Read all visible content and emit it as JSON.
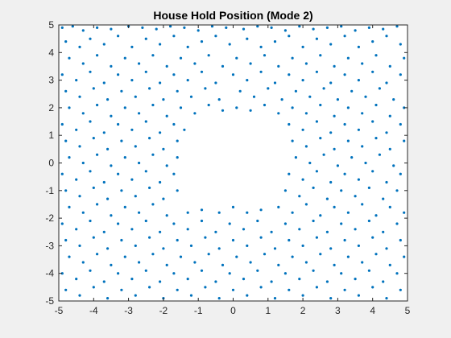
{
  "chart_data": {
    "type": "scatter",
    "title": "House Hold Position (Mode 2)",
    "xlabel": "",
    "ylabel": "",
    "xlim": [
      -5,
      5
    ],
    "ylim": [
      -5,
      5
    ],
    "xticks": [
      "-5",
      "-4",
      "-3",
      "-2",
      "-1",
      "0",
      "1",
      "2",
      "3",
      "4",
      "5"
    ],
    "yticks": [
      "-5",
      "-4",
      "-3",
      "-2",
      "-1",
      "0",
      "1",
      "2",
      "3",
      "4",
      "5"
    ],
    "grid": false,
    "marker_color": "#0072BD",
    "points_description_omitted": false,
    "points": [
      [
        -4.9,
        4.9
      ],
      [
        -4.6,
        4.95
      ],
      [
        -4.3,
        4.8
      ],
      [
        -3.9,
        4.9
      ],
      [
        -3.5,
        4.85
      ],
      [
        -3.0,
        4.95
      ],
      [
        -2.6,
        4.9
      ],
      [
        -2.2,
        4.85
      ],
      [
        -1.8,
        4.95
      ],
      [
        -1.4,
        4.9
      ],
      [
        -1.0,
        4.8
      ],
      [
        -0.6,
        4.95
      ],
      [
        -0.2,
        4.9
      ],
      [
        0.3,
        4.85
      ],
      [
        0.7,
        4.95
      ],
      [
        1.1,
        4.9
      ],
      [
        1.5,
        4.8
      ],
      [
        1.9,
        4.95
      ],
      [
        2.3,
        4.85
      ],
      [
        2.7,
        4.9
      ],
      [
        3.1,
        4.95
      ],
      [
        3.5,
        4.8
      ],
      [
        3.9,
        4.9
      ],
      [
        4.3,
        4.85
      ],
      [
        4.7,
        4.95
      ],
      [
        -4.8,
        4.4
      ],
      [
        -4.4,
        4.2
      ],
      [
        -4.1,
        4.5
      ],
      [
        -3.7,
        4.3
      ],
      [
        -3.3,
        4.6
      ],
      [
        -2.9,
        4.2
      ],
      [
        -2.5,
        4.5
      ],
      [
        -2.1,
        4.3
      ],
      [
        -1.7,
        4.6
      ],
      [
        -1.3,
        4.2
      ],
      [
        -0.9,
        4.4
      ],
      [
        -0.5,
        4.6
      ],
      [
        -0.1,
        4.3
      ],
      [
        0.4,
        4.5
      ],
      [
        0.8,
        4.2
      ],
      [
        1.2,
        4.4
      ],
      [
        1.6,
        4.6
      ],
      [
        2.0,
        4.2
      ],
      [
        2.4,
        4.5
      ],
      [
        2.8,
        4.3
      ],
      [
        3.2,
        4.6
      ],
      [
        3.6,
        4.2
      ],
      [
        4.0,
        4.4
      ],
      [
        4.4,
        4.6
      ],
      [
        4.8,
        4.3
      ],
      [
        -4.7,
        3.8
      ],
      [
        -4.3,
        3.6
      ],
      [
        -3.9,
        3.9
      ],
      [
        -3.5,
        3.5
      ],
      [
        -3.1,
        3.8
      ],
      [
        -2.7,
        3.6
      ],
      [
        -2.3,
        3.9
      ],
      [
        -1.9,
        3.5
      ],
      [
        -1.5,
        3.8
      ],
      [
        -1.1,
        3.6
      ],
      [
        -0.7,
        3.9
      ],
      [
        -0.3,
        3.5
      ],
      [
        0.1,
        3.8
      ],
      [
        0.5,
        3.6
      ],
      [
        0.9,
        3.9
      ],
      [
        1.3,
        3.5
      ],
      [
        1.7,
        3.8
      ],
      [
        2.1,
        3.6
      ],
      [
        2.5,
        3.9
      ],
      [
        2.9,
        3.5
      ],
      [
        3.3,
        3.8
      ],
      [
        3.7,
        3.6
      ],
      [
        4.1,
        3.9
      ],
      [
        4.5,
        3.5
      ],
      [
        4.9,
        3.8
      ],
      [
        -4.9,
        3.2
      ],
      [
        -4.5,
        3.0
      ],
      [
        -4.1,
        3.3
      ],
      [
        -3.7,
        2.9
      ],
      [
        -3.3,
        3.2
      ],
      [
        -2.9,
        3.0
      ],
      [
        -2.5,
        3.3
      ],
      [
        -2.1,
        2.9
      ],
      [
        -1.7,
        3.2
      ],
      [
        -1.3,
        3.0
      ],
      [
        -0.9,
        3.3
      ],
      [
        -0.5,
        2.9
      ],
      [
        0.0,
        3.2
      ],
      [
        0.4,
        3.0
      ],
      [
        0.8,
        3.3
      ],
      [
        1.2,
        2.9
      ],
      [
        1.6,
        3.2
      ],
      [
        2.0,
        3.0
      ],
      [
        2.4,
        3.3
      ],
      [
        2.8,
        2.9
      ],
      [
        3.2,
        3.2
      ],
      [
        3.6,
        3.0
      ],
      [
        4.0,
        3.3
      ],
      [
        4.4,
        2.9
      ],
      [
        4.8,
        3.2
      ],
      [
        -4.8,
        2.6
      ],
      [
        -4.4,
        2.4
      ],
      [
        -4.0,
        2.7
      ],
      [
        -3.6,
        2.3
      ],
      [
        -3.2,
        2.6
      ],
      [
        -2.8,
        2.4
      ],
      [
        -2.4,
        2.7
      ],
      [
        -2.0,
        2.3
      ],
      [
        -1.6,
        2.6
      ],
      [
        -1.2,
        2.4
      ],
      [
        -0.8,
        2.7
      ],
      [
        -0.4,
        2.3
      ],
      [
        0.2,
        2.6
      ],
      [
        0.6,
        2.4
      ],
      [
        1.0,
        2.7
      ],
      [
        1.4,
        2.3
      ],
      [
        1.8,
        2.6
      ],
      [
        2.2,
        2.4
      ],
      [
        2.6,
        2.7
      ],
      [
        3.0,
        2.3
      ],
      [
        3.4,
        2.6
      ],
      [
        3.8,
        2.4
      ],
      [
        4.2,
        2.7
      ],
      [
        4.6,
        2.3
      ],
      [
        -4.7,
        2.0
      ],
      [
        -4.3,
        1.8
      ],
      [
        -3.9,
        2.1
      ],
      [
        -3.5,
        1.7
      ],
      [
        -3.1,
        2.0
      ],
      [
        -2.7,
        1.8
      ],
      [
        -2.3,
        2.1
      ],
      [
        -1.9,
        1.7
      ],
      [
        -1.5,
        2.0
      ],
      [
        -1.1,
        1.8
      ],
      [
        -0.7,
        2.1
      ],
      [
        -0.3,
        1.9
      ],
      [
        0.1,
        2.0
      ],
      [
        0.5,
        1.9
      ],
      [
        0.9,
        2.1
      ],
      [
        1.3,
        1.8
      ],
      [
        1.7,
        2.0
      ],
      [
        2.1,
        1.8
      ],
      [
        2.5,
        2.1
      ],
      [
        2.9,
        1.7
      ],
      [
        3.3,
        2.0
      ],
      [
        3.7,
        1.8
      ],
      [
        4.1,
        2.1
      ],
      [
        4.5,
        1.7
      ],
      [
        4.9,
        2.0
      ],
      [
        -4.9,
        1.4
      ],
      [
        -4.5,
        1.2
      ],
      [
        -4.1,
        1.5
      ],
      [
        -3.7,
        1.1
      ],
      [
        -3.3,
        1.4
      ],
      [
        -2.9,
        1.2
      ],
      [
        -2.5,
        1.5
      ],
      [
        -2.1,
        1.1
      ],
      [
        -1.7,
        1.4
      ],
      [
        -1.4,
        1.2
      ],
      [
        1.6,
        1.4
      ],
      [
        2.0,
        1.2
      ],
      [
        2.4,
        1.5
      ],
      [
        2.8,
        1.1
      ],
      [
        3.2,
        1.4
      ],
      [
        3.6,
        1.2
      ],
      [
        4.0,
        1.5
      ],
      [
        4.4,
        1.1
      ],
      [
        4.8,
        1.4
      ],
      [
        -4.8,
        0.8
      ],
      [
        -4.4,
        0.6
      ],
      [
        -4.0,
        0.9
      ],
      [
        -3.6,
        0.5
      ],
      [
        -3.2,
        0.8
      ],
      [
        -2.8,
        0.6
      ],
      [
        -2.4,
        0.9
      ],
      [
        -2.0,
        0.5
      ],
      [
        -1.6,
        0.8
      ],
      [
        1.7,
        0.8
      ],
      [
        2.1,
        0.6
      ],
      [
        2.5,
        0.9
      ],
      [
        2.9,
        0.5
      ],
      [
        3.3,
        0.8
      ],
      [
        3.7,
        0.6
      ],
      [
        4.1,
        0.9
      ],
      [
        4.5,
        0.5
      ],
      [
        4.9,
        0.8
      ],
      [
        -4.7,
        0.2
      ],
      [
        -4.3,
        0.0
      ],
      [
        -3.9,
        0.3
      ],
      [
        -3.5,
        -0.1
      ],
      [
        -3.1,
        0.2
      ],
      [
        -2.7,
        0.0
      ],
      [
        -2.3,
        0.3
      ],
      [
        -1.9,
        -0.1
      ],
      [
        -1.6,
        0.2
      ],
      [
        1.8,
        0.2
      ],
      [
        2.2,
        0.0
      ],
      [
        2.6,
        0.3
      ],
      [
        3.0,
        -0.1
      ],
      [
        3.4,
        0.2
      ],
      [
        3.8,
        0.0
      ],
      [
        4.2,
        0.3
      ],
      [
        4.6,
        -0.1
      ],
      [
        -4.9,
        -0.4
      ],
      [
        -4.5,
        -0.6
      ],
      [
        -4.1,
        -0.3
      ],
      [
        -3.7,
        -0.7
      ],
      [
        -3.3,
        -0.4
      ],
      [
        -2.9,
        -0.6
      ],
      [
        -2.5,
        -0.3
      ],
      [
        -2.1,
        -0.7
      ],
      [
        -1.7,
        -0.4
      ],
      [
        1.6,
        -0.4
      ],
      [
        2.0,
        -0.6
      ],
      [
        2.4,
        -0.3
      ],
      [
        2.8,
        -0.7
      ],
      [
        3.2,
        -0.4
      ],
      [
        3.6,
        -0.6
      ],
      [
        4.0,
        -0.3
      ],
      [
        4.4,
        -0.7
      ],
      [
        4.8,
        -0.4
      ],
      [
        -4.8,
        -1.0
      ],
      [
        -4.4,
        -1.2
      ],
      [
        -4.0,
        -0.9
      ],
      [
        -3.6,
        -1.3
      ],
      [
        -3.2,
        -1.0
      ],
      [
        -2.8,
        -1.2
      ],
      [
        -2.4,
        -0.9
      ],
      [
        -2.0,
        -1.3
      ],
      [
        -1.6,
        -1.0
      ],
      [
        1.5,
        -1.0
      ],
      [
        1.9,
        -1.2
      ],
      [
        2.3,
        -0.9
      ],
      [
        2.7,
        -1.3
      ],
      [
        3.1,
        -1.0
      ],
      [
        3.5,
        -1.2
      ],
      [
        3.9,
        -0.9
      ],
      [
        4.3,
        -1.3
      ],
      [
        4.7,
        -1.0
      ],
      [
        -4.7,
        -1.6
      ],
      [
        -4.3,
        -1.8
      ],
      [
        -3.9,
        -1.5
      ],
      [
        -3.5,
        -1.9
      ],
      [
        -3.1,
        -1.6
      ],
      [
        -2.7,
        -1.8
      ],
      [
        -2.3,
        -1.5
      ],
      [
        -1.9,
        -1.9
      ],
      [
        -1.3,
        -1.8
      ],
      [
        -0.9,
        -1.7
      ],
      [
        -0.4,
        -1.8
      ],
      [
        0.0,
        -1.6
      ],
      [
        0.4,
        -1.8
      ],
      [
        0.8,
        -1.7
      ],
      [
        1.3,
        -1.6
      ],
      [
        1.7,
        -1.8
      ],
      [
        2.1,
        -1.5
      ],
      [
        2.5,
        -1.9
      ],
      [
        2.9,
        -1.6
      ],
      [
        3.3,
        -1.8
      ],
      [
        3.7,
        -1.5
      ],
      [
        4.1,
        -1.9
      ],
      [
        4.5,
        -1.6
      ],
      [
        4.9,
        -1.8
      ],
      [
        -4.9,
        -2.2
      ],
      [
        -4.5,
        -2.4
      ],
      [
        -4.1,
        -2.1
      ],
      [
        -3.7,
        -2.5
      ],
      [
        -3.3,
        -2.2
      ],
      [
        -2.9,
        -2.4
      ],
      [
        -2.5,
        -2.1
      ],
      [
        -2.1,
        -2.5
      ],
      [
        -1.7,
        -2.2
      ],
      [
        -1.3,
        -2.4
      ],
      [
        -0.9,
        -2.1
      ],
      [
        -0.5,
        -2.5
      ],
      [
        -0.1,
        -2.2
      ],
      [
        0.3,
        -2.4
      ],
      [
        0.7,
        -2.1
      ],
      [
        1.1,
        -2.5
      ],
      [
        1.5,
        -2.2
      ],
      [
        1.9,
        -2.4
      ],
      [
        2.3,
        -2.1
      ],
      [
        2.7,
        -2.5
      ],
      [
        3.1,
        -2.2
      ],
      [
        3.5,
        -2.4
      ],
      [
        3.9,
        -2.1
      ],
      [
        4.3,
        -2.5
      ],
      [
        4.7,
        -2.2
      ],
      [
        -4.8,
        -2.8
      ],
      [
        -4.4,
        -3.0
      ],
      [
        -4.0,
        -2.7
      ],
      [
        -3.6,
        -3.1
      ],
      [
        -3.2,
        -2.8
      ],
      [
        -2.8,
        -3.0
      ],
      [
        -2.4,
        -2.7
      ],
      [
        -2.0,
        -3.1
      ],
      [
        -1.6,
        -2.8
      ],
      [
        -1.2,
        -3.0
      ],
      [
        -0.8,
        -2.7
      ],
      [
        -0.4,
        -3.1
      ],
      [
        0.0,
        -2.8
      ],
      [
        0.4,
        -3.0
      ],
      [
        0.8,
        -2.7
      ],
      [
        1.2,
        -3.1
      ],
      [
        1.6,
        -2.8
      ],
      [
        2.0,
        -3.0
      ],
      [
        2.4,
        -2.7
      ],
      [
        2.8,
        -3.1
      ],
      [
        3.2,
        -2.8
      ],
      [
        3.6,
        -3.0
      ],
      [
        4.0,
        -2.7
      ],
      [
        4.4,
        -3.1
      ],
      [
        4.8,
        -2.8
      ],
      [
        -4.7,
        -3.4
      ],
      [
        -4.3,
        -3.6
      ],
      [
        -3.9,
        -3.3
      ],
      [
        -3.5,
        -3.7
      ],
      [
        -3.1,
        -3.4
      ],
      [
        -2.7,
        -3.6
      ],
      [
        -2.3,
        -3.3
      ],
      [
        -1.9,
        -3.7
      ],
      [
        -1.5,
        -3.4
      ],
      [
        -1.1,
        -3.6
      ],
      [
        -0.7,
        -3.3
      ],
      [
        -0.3,
        -3.7
      ],
      [
        0.1,
        -3.4
      ],
      [
        0.5,
        -3.6
      ],
      [
        0.9,
        -3.3
      ],
      [
        1.3,
        -3.7
      ],
      [
        1.7,
        -3.4
      ],
      [
        2.1,
        -3.6
      ],
      [
        2.5,
        -3.3
      ],
      [
        2.9,
        -3.7
      ],
      [
        3.3,
        -3.4
      ],
      [
        3.7,
        -3.6
      ],
      [
        4.1,
        -3.3
      ],
      [
        4.5,
        -3.7
      ],
      [
        4.9,
        -3.4
      ],
      [
        -4.9,
        -4.0
      ],
      [
        -4.5,
        -4.2
      ],
      [
        -4.1,
        -3.9
      ],
      [
        -3.7,
        -4.3
      ],
      [
        -3.3,
        -4.0
      ],
      [
        -2.9,
        -4.2
      ],
      [
        -2.5,
        -3.9
      ],
      [
        -2.1,
        -4.3
      ],
      [
        -1.7,
        -4.0
      ],
      [
        -1.3,
        -4.2
      ],
      [
        -0.9,
        -3.9
      ],
      [
        -0.5,
        -4.3
      ],
      [
        -0.1,
        -4.0
      ],
      [
        0.3,
        -4.2
      ],
      [
        0.7,
        -3.9
      ],
      [
        1.1,
        -4.3
      ],
      [
        1.5,
        -4.0
      ],
      [
        1.9,
        -4.2
      ],
      [
        2.3,
        -3.9
      ],
      [
        2.7,
        -4.3
      ],
      [
        3.1,
        -4.0
      ],
      [
        3.5,
        -4.2
      ],
      [
        3.9,
        -3.9
      ],
      [
        4.3,
        -4.3
      ],
      [
        4.7,
        -4.0
      ],
      [
        -4.8,
        -4.6
      ],
      [
        -4.4,
        -4.8
      ],
      [
        -4.0,
        -4.5
      ],
      [
        -3.6,
        -4.9
      ],
      [
        -3.2,
        -4.6
      ],
      [
        -2.8,
        -4.8
      ],
      [
        -2.4,
        -4.5
      ],
      [
        -2.0,
        -4.9
      ],
      [
        -1.6,
        -4.6
      ],
      [
        -1.2,
        -4.8
      ],
      [
        -0.8,
        -4.5
      ],
      [
        -0.4,
        -4.9
      ],
      [
        0.0,
        -4.6
      ],
      [
        0.4,
        -4.8
      ],
      [
        0.8,
        -4.5
      ],
      [
        1.2,
        -4.9
      ],
      [
        1.6,
        -4.6
      ],
      [
        2.0,
        -4.8
      ],
      [
        2.4,
        -4.5
      ],
      [
        2.8,
        -4.9
      ],
      [
        3.2,
        -4.6
      ],
      [
        3.6,
        -4.8
      ],
      [
        4.0,
        -4.5
      ],
      [
        4.4,
        -4.9
      ],
      [
        4.8,
        -4.6
      ]
    ]
  }
}
